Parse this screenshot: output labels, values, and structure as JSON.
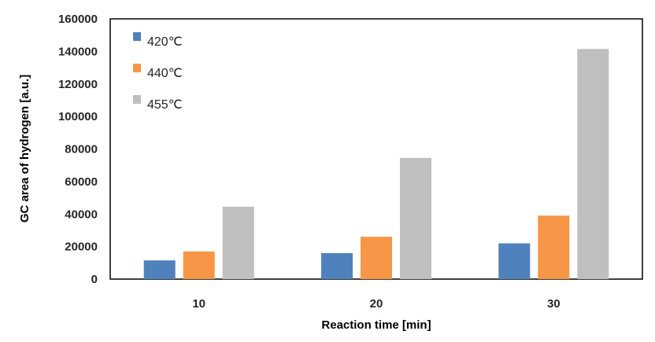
{
  "chart_data": {
    "type": "bar",
    "title": "",
    "xlabel": "Reaction time [min]",
    "ylabel": "GC area of hydrogen [a.u.]",
    "categories": [
      "10",
      "20",
      "30"
    ],
    "series": [
      {
        "name": "420℃",
        "color": "#4f81bd",
        "values": [
          11500,
          16000,
          22000
        ]
      },
      {
        "name": "440℃",
        "color": "#f79646",
        "values": [
          17000,
          26000,
          39000
        ]
      },
      {
        "name": "455℃",
        "color": "#bfbfbf",
        "values": [
          44500,
          74500,
          141500
        ]
      }
    ],
    "ylim": [
      0,
      160000
    ],
    "yticks": [
      "0",
      "20000",
      "40000",
      "60000",
      "80000",
      "100000",
      "120000",
      "140000",
      "160000"
    ],
    "grid": false,
    "legend_position": "top-left inside plot"
  }
}
